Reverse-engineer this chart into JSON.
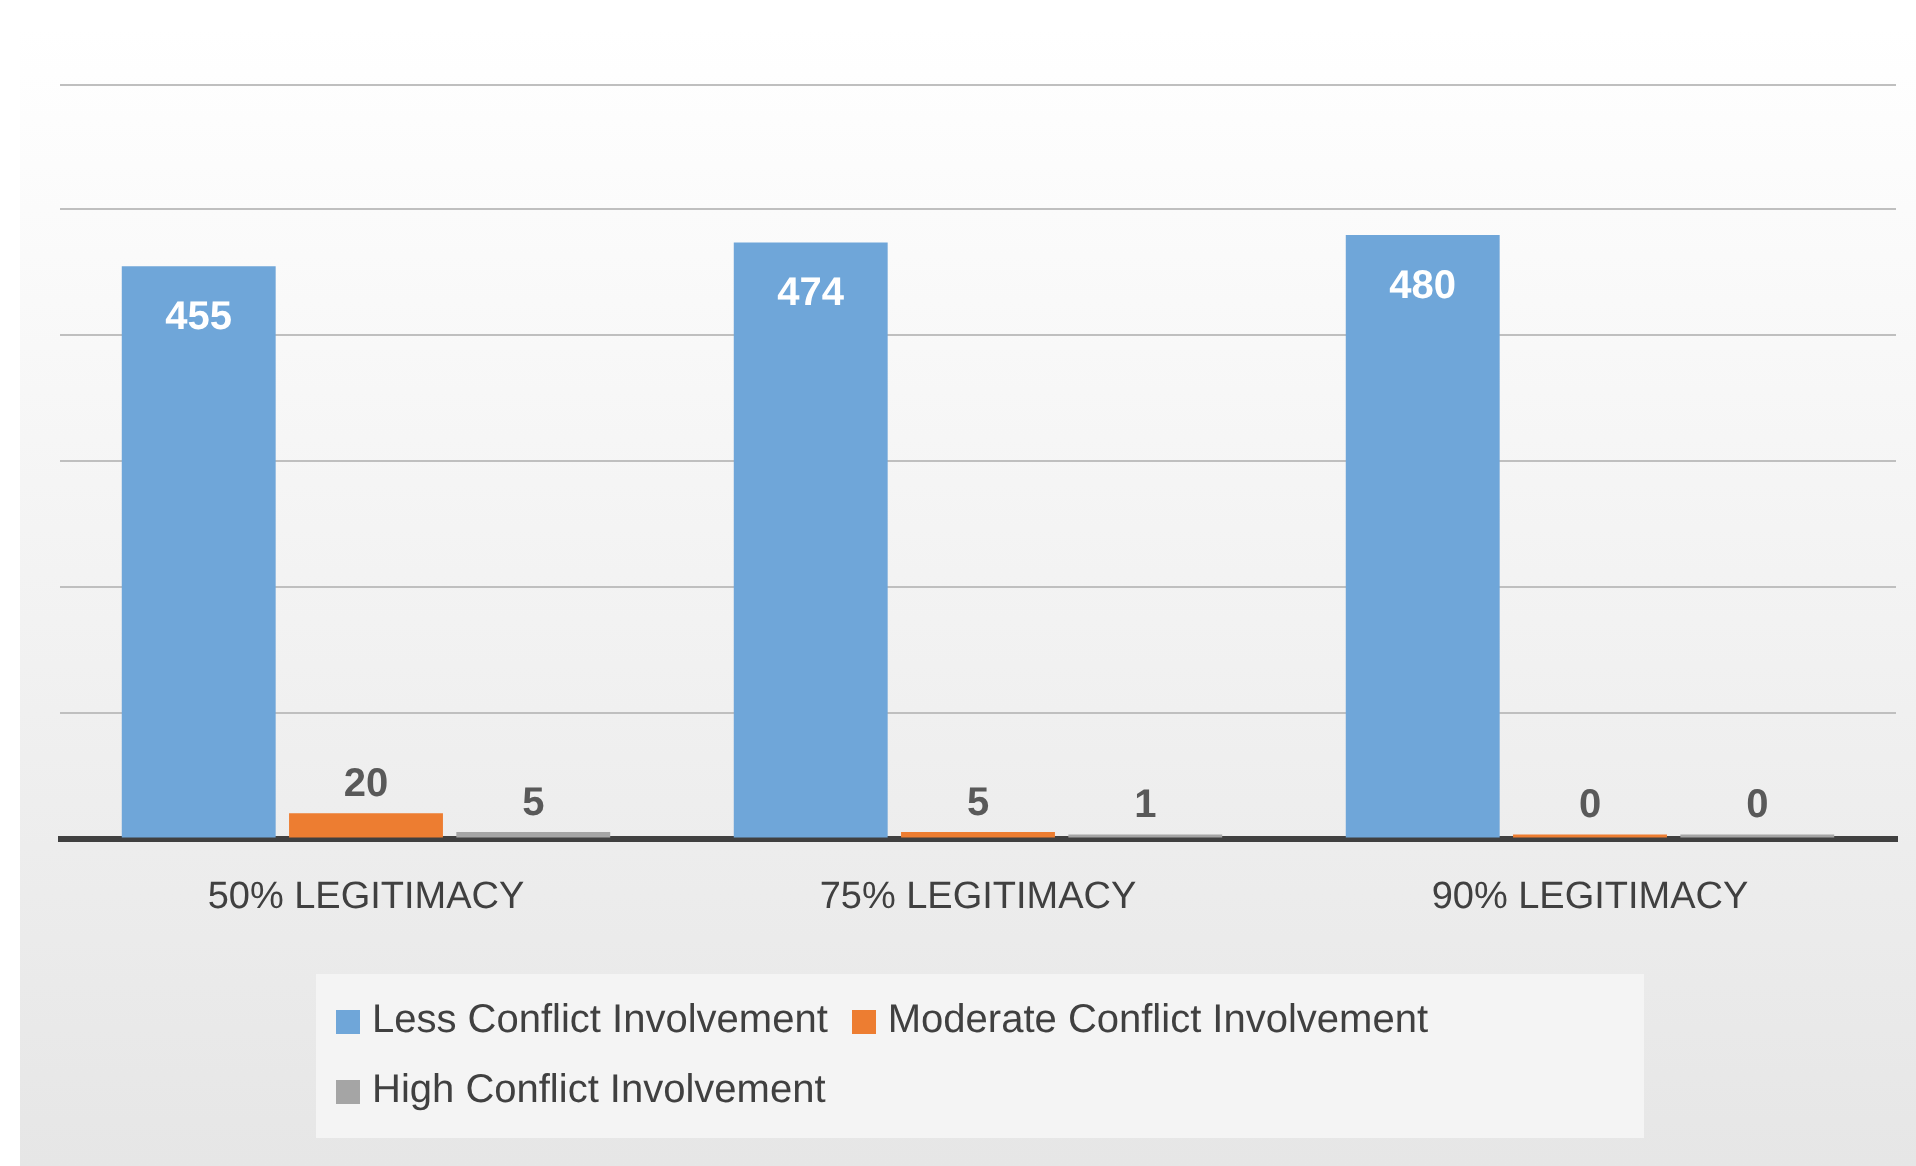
{
  "chart_data": {
    "type": "bar",
    "categories": [
      "50% LEGITIMACY",
      "75% LEGITIMACY",
      "90% LEGITIMACY"
    ],
    "series": [
      {
        "name": "Less Conflict Involvement",
        "color": "#6fa6d9",
        "values": [
          455,
          474,
          480
        ]
      },
      {
        "name": "Moderate Conflict Involvement",
        "color": "#ed7d31",
        "values": [
          20,
          5,
          0
        ]
      },
      {
        "name": "High Conflict Involvement",
        "color": "#a5a5a5",
        "values": [
          5,
          1,
          0
        ]
      }
    ],
    "ylim": [
      0,
      600
    ],
    "yticks": [
      {
        "value": 0,
        "label": null
      },
      {
        "value": 100,
        "label": null
      },
      {
        "value": 200,
        "label": null
      },
      {
        "value": 300,
        "label": null
      },
      {
        "value": 400,
        "label": null
      },
      {
        "value": 500,
        "label": null
      },
      {
        "value": 600,
        "label": null
      }
    ],
    "grid": "y",
    "legend": "bottom",
    "tick_labels": "x",
    "data_labels": true
  }
}
